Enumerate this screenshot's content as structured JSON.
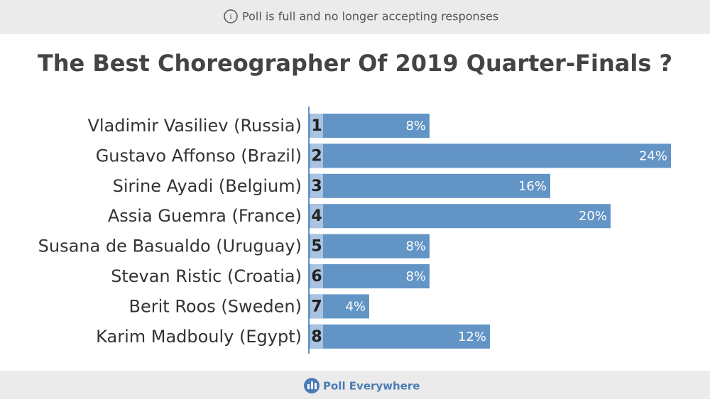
{
  "banner": "Poll is full and no longer accepting responses",
  "footer": "Poll Everywhere",
  "chart_data": {
    "type": "bar",
    "title": "The Best Choreographer Of 2019 Quarter-Finals ?",
    "categories": [
      "Vladimir Vasiliev (Russia)",
      "Gustavo Affonso (Brazil)",
      "Sirine Ayadi (Belgium)",
      "Assia Guemra (France)",
      "Susana de Basualdo (Uruguay)",
      "Stevan Ristic (Croatia)",
      "Berit Roos (Sweden)",
      "Karim Madbouly (Egypt)"
    ],
    "ranks": [
      1,
      2,
      3,
      4,
      5,
      6,
      7,
      8
    ],
    "values": [
      8,
      24,
      16,
      20,
      8,
      8,
      4,
      12
    ],
    "value_labels": [
      "8%",
      "24%",
      "16%",
      "20%",
      "8%",
      "8%",
      "4%",
      "12%"
    ],
    "color": "#6394c6"
  }
}
